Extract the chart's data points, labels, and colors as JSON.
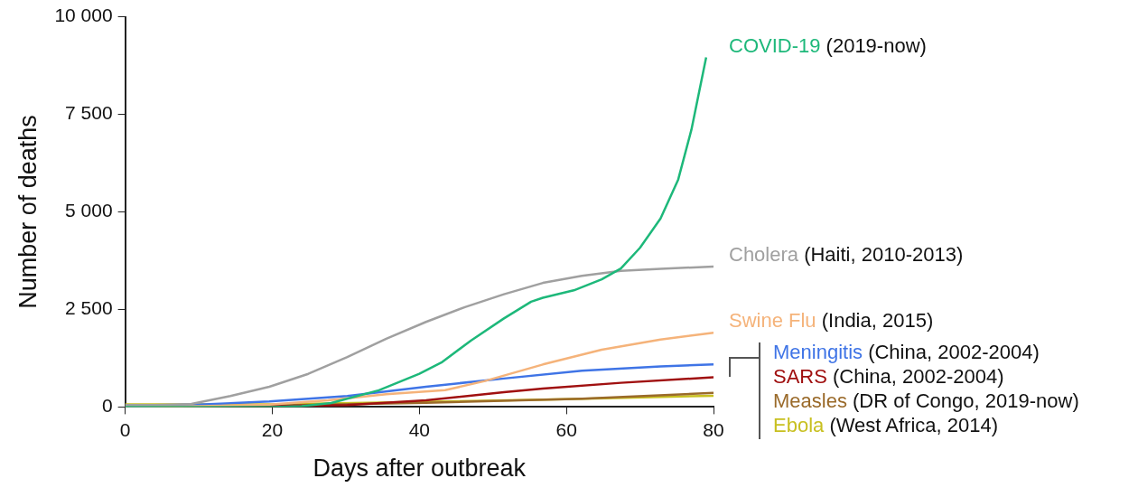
{
  "chart_data": {
    "type": "line",
    "xlabel": "Days after outbreak",
    "ylabel": "Number of deaths",
    "xlim": [
      0,
      80
    ],
    "xticks": [
      0,
      20,
      40,
      60,
      80
    ],
    "ylim": [
      0,
      10000
    ],
    "yticks": [
      0,
      {
        "value": 2500,
        "label": "2 500"
      },
      {
        "value": 5000,
        "label": "5 000"
      },
      {
        "value": 7500,
        "label": "7 500"
      },
      {
        "value": 10000,
        "label": "10 000"
      }
    ],
    "grid": false,
    "legend": false,
    "marker": "none",
    "line_style": "solid",
    "series": [
      {
        "name": "COVID-19 (2019-now)",
        "color": "#1db87a",
        "x": [
          0,
          10,
          20,
          24,
          28,
          34.5,
          40,
          43,
          47,
          51.5,
          55.2,
          56.8,
          61,
          64.8,
          67.4,
          70,
          72.8,
          75.2,
          77,
          79
        ],
        "values": [
          0,
          0,
          0,
          20,
          100,
          430,
          850,
          1140,
          1700,
          2270,
          2700,
          2800,
          2990,
          3270,
          3550,
          4080,
          4830,
          5830,
          7110,
          8960
        ]
      },
      {
        "name": "Cholera (Haiti, 2010-2013)",
        "color": "#a0a0a0",
        "x": [
          0,
          4,
          9,
          14.3,
          19.6,
          24.9,
          30.2,
          35.5,
          40.9,
          46.2,
          51.5,
          56.8,
          62.1,
          67.4,
          72.8,
          80
        ],
        "values": [
          50,
          50,
          80,
          280,
          520,
          850,
          1280,
          1750,
          2180,
          2560,
          2890,
          3180,
          3360,
          3490,
          3540,
          3600
        ]
      },
      {
        "name": "Swine Flu (India, 2015)",
        "color": "#f5b37a",
        "x": [
          0,
          10,
          19.6,
          27.6,
          35.5,
          43.5,
          48.8,
          56.8,
          64.8,
          72.8,
          80
        ],
        "values": [
          0,
          20,
          60,
          170,
          330,
          430,
          660,
          1090,
          1470,
          1730,
          1900
        ]
      },
      {
        "name": "Meningitis (China, 2002-2004)",
        "color": "#3f74e6",
        "x": [
          0,
          10,
          19.6,
          30.2,
          40.9,
          51.5,
          62.1,
          72.8,
          80
        ],
        "values": [
          0,
          60,
          140,
          280,
          520,
          730,
          930,
          1040,
          1090
        ]
      },
      {
        "name": "SARS (China, 2002-2004)",
        "color": "#a01010",
        "x": [
          0,
          20,
          30.2,
          40.9,
          51.5,
          56.8,
          67.4,
          80
        ],
        "values": [
          0,
          20,
          50,
          170,
          380,
          470,
          620,
          760
        ]
      },
      {
        "name": "Measles (DR of Congo, 2019-now)",
        "color": "#9a6a2a",
        "x": [
          0,
          20,
          40.9,
          62.1,
          80
        ],
        "values": [
          0,
          40,
          110,
          210,
          360
        ]
      },
      {
        "name": "Ebola (West Africa, 2014)",
        "color": "#c8c020",
        "x": [
          0,
          20,
          40,
          60,
          80
        ],
        "values": [
          70,
          70,
          130,
          200,
          290
        ]
      }
    ]
  }
}
